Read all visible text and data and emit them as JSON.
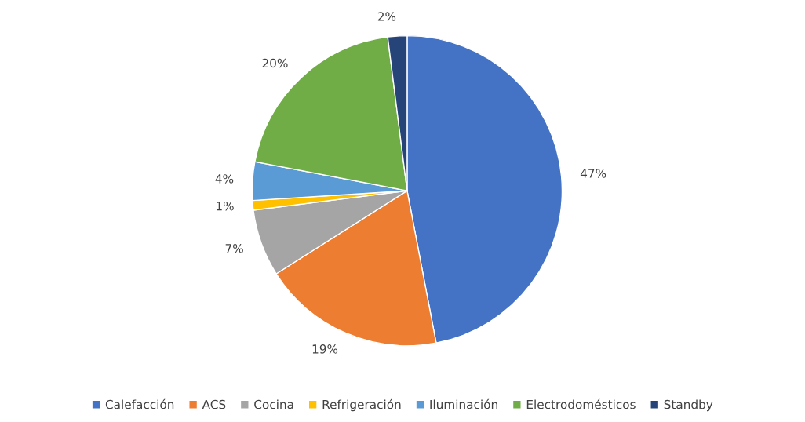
{
  "chart_data": {
    "type": "pie",
    "categories": [
      "Calefacción",
      "ACS",
      "Cocina",
      "Refrigeración",
      "Iluminación",
      "Electrodomésticos",
      "Standby"
    ],
    "values": [
      47,
      19,
      7,
      1,
      4,
      20,
      2
    ],
    "value_labels": [
      "47%",
      "19%",
      "7%",
      "1%",
      "4%",
      "20%",
      "2%"
    ],
    "colors": [
      "#4472c4",
      "#ed7d31",
      "#a5a5a5",
      "#ffc000",
      "#5b9bd5",
      "#70ad47",
      "#264478"
    ],
    "legend": "bottom"
  }
}
